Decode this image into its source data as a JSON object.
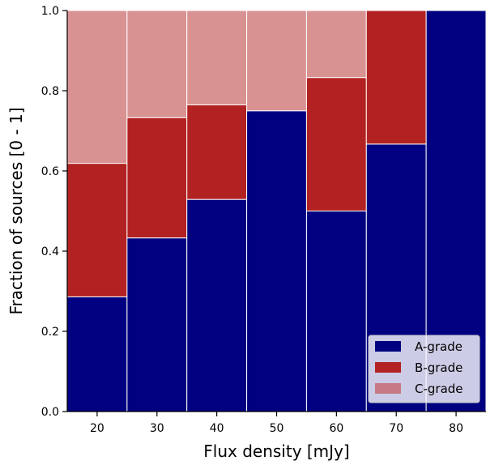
{
  "chart_data": {
    "type": "bar",
    "stacked": true,
    "categories": [
      "20",
      "30",
      "40",
      "50",
      "60",
      "70",
      "80"
    ],
    "series": [
      {
        "name": "A-grade",
        "color": "#000080",
        "values": [
          0.286,
          0.433,
          0.529,
          0.75,
          0.5,
          0.667,
          1.0
        ]
      },
      {
        "name": "B-grade",
        "color": "#b22222",
        "values": [
          0.333,
          0.3,
          0.236,
          0.0,
          0.333,
          0.333,
          0.0
        ]
      },
      {
        "name": "C-grade",
        "color": "#d99292",
        "legend_color": "#c77a84",
        "values": [
          0.381,
          0.267,
          0.235,
          0.25,
          0.167,
          0.0,
          0.0
        ]
      }
    ],
    "xlabel": "Flux density [mJy]",
    "ylabel": "Fraction of sources [0 - 1]",
    "ylim": [
      0.0,
      1.0
    ],
    "yticks": [
      "0.0",
      "0.2",
      "0.4",
      "0.6",
      "0.8",
      "1.0"
    ],
    "legend_position": "lower-right",
    "grid": false
  }
}
